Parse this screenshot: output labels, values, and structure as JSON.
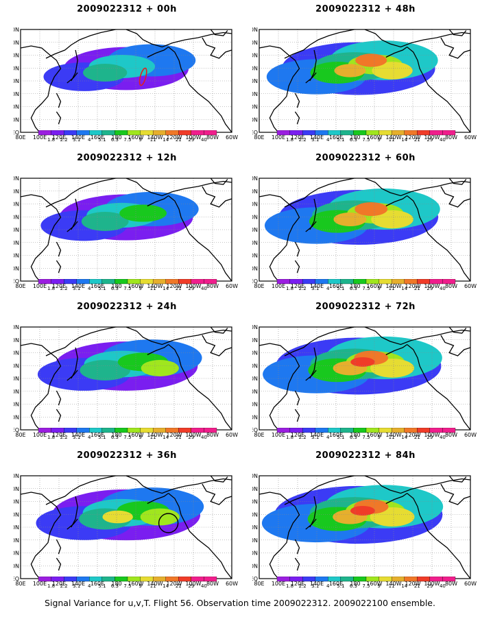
{
  "panels": [
    {
      "title": "2009022312 + 00h",
      "intensity": 0.45,
      "marker": "red-contour"
    },
    {
      "title": "2009022312 + 48h",
      "intensity": 0.78,
      "marker": ""
    },
    {
      "title": "2009022312 + 12h",
      "intensity": 0.55,
      "marker": ""
    },
    {
      "title": "2009022312 + 60h",
      "intensity": 0.85,
      "marker": ""
    },
    {
      "title": "2009022312 + 24h",
      "intensity": 0.66,
      "marker": ""
    },
    {
      "title": "2009022312 + 72h",
      "intensity": 0.92,
      "marker": ""
    },
    {
      "title": "2009022312 + 36h",
      "intensity": 0.72,
      "marker": "black-circle"
    },
    {
      "title": "2009022312 + 84h",
      "intensity": 0.95,
      "marker": ""
    }
  ],
  "lat_labels": [
    "80N",
    "70N",
    "60N",
    "50N",
    "40N",
    "30N",
    "20N",
    "10N",
    "EQ"
  ],
  "lon_labels": [
    "80E",
    "100E",
    "120E",
    "140E",
    "160E",
    "180",
    "160W",
    "140W",
    "120W",
    "100W",
    "80W",
    "60W"
  ],
  "colorbar": {
    "labels": [
      "1.8",
      "2.2",
      "3.1",
      "4",
      "5.1",
      "6.3",
      "7.5",
      "9",
      "11",
      "14",
      "21",
      "29",
      "40"
    ],
    "colors": [
      "#9b1ee0",
      "#7a1ef0",
      "#3b3bf5",
      "#1e78f0",
      "#1ec8c8",
      "#1eb48c",
      "#18c81e",
      "#a0e61e",
      "#e6dc32",
      "#e6af2d",
      "#f07828",
      "#f03c28",
      "#f01e8c"
    ]
  },
  "caption": "Signal Variance for u,v,T. Flight 56. Observation time 2009022312. 2009022100 ensemble."
}
